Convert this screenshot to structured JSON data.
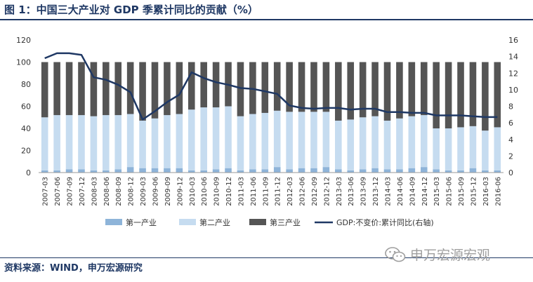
{
  "title": "图 1：中国三大产业对 GDP 季累计同比的贡献（%）",
  "source": "资料来源：WIND，申万宏源研究",
  "watermark": "申万宏源宏观",
  "colors": {
    "title": "#1f3864",
    "primary": "#8eb4d9",
    "secondary": "#c6dcf0",
    "tertiary": "#555555",
    "line": "#1f3864"
  },
  "chart_data": {
    "type": "bar",
    "stacked": true,
    "categories": [
      "2007-03",
      "2007-06",
      "2007-09",
      "2007-12",
      "2008-03",
      "2008-06",
      "2008-09",
      "2008-12",
      "2009-03",
      "2009-06",
      "2009-09",
      "2009-12",
      "2010-03",
      "2010-06",
      "2010-09",
      "2010-12",
      "2011-03",
      "2011-06",
      "2011-09",
      "2011-12",
      "2012-03",
      "2012-06",
      "2012-09",
      "2012-12",
      "2013-03",
      "2013-06",
      "2013-09",
      "2013-12",
      "2014-03",
      "2014-06",
      "2014-09",
      "2014-12",
      "2015-03",
      "2015-06",
      "2015-09",
      "2015-12",
      "2016-03",
      "2016-06"
    ],
    "series": [
      {
        "name": "第一产业",
        "type": "bar",
        "axis": "left",
        "values": [
          2,
          2,
          3,
          3,
          2,
          2,
          3,
          5,
          4,
          4,
          4,
          4,
          2,
          2,
          3,
          4,
          2,
          3,
          3,
          5,
          3,
          4,
          4,
          5,
          3,
          2,
          3,
          4,
          3,
          3,
          4,
          5,
          3,
          2,
          2,
          4,
          2,
          2
        ]
      },
      {
        "name": "第二产业",
        "type": "bar",
        "axis": "left",
        "values": [
          48,
          50,
          49,
          49,
          49,
          50,
          49,
          48,
          43,
          45,
          48,
          49,
          55,
          57,
          56,
          56,
          49,
          50,
          51,
          51,
          52,
          51,
          51,
          50,
          44,
          46,
          47,
          47,
          44,
          46,
          47,
          47,
          37,
          38,
          39,
          38,
          36,
          39
        ]
      },
      {
        "name": "第三产业",
        "type": "bar",
        "axis": "left",
        "values": [
          50,
          48,
          48,
          48,
          49,
          48,
          48,
          47,
          53,
          51,
          48,
          47,
          43,
          41,
          41,
          40,
          49,
          47,
          46,
          44,
          45,
          45,
          45,
          45,
          53,
          52,
          50,
          49,
          53,
          51,
          49,
          48,
          60,
          60,
          59,
          58,
          62,
          59
        ]
      },
      {
        "name": "GDP:不变价:累计同比(右轴)",
        "type": "line",
        "axis": "right",
        "values": [
          13.8,
          14.4,
          14.4,
          14.2,
          11.5,
          11.2,
          10.6,
          9.7,
          6.4,
          7.4,
          8.5,
          9.4,
          12.1,
          11.4,
          10.9,
          10.6,
          10.2,
          10.1,
          9.8,
          9.5,
          8.1,
          7.8,
          7.7,
          7.8,
          7.8,
          7.6,
          7.7,
          7.7,
          7.3,
          7.3,
          7.2,
          7.2,
          6.9,
          6.9,
          6.9,
          6.8,
          6.7,
          6.7
        ]
      }
    ],
    "y_left": {
      "range": [
        0,
        120
      ],
      "ticks": [
        "0",
        "20",
        "40",
        "60",
        "80",
        "100",
        "120"
      ]
    },
    "y_right": {
      "range": [
        0,
        16
      ],
      "ticks": [
        "0",
        "2",
        "4",
        "6",
        "8",
        "10",
        "12",
        "14",
        "16"
      ]
    },
    "legend": {
      "position": "bottom"
    }
  }
}
